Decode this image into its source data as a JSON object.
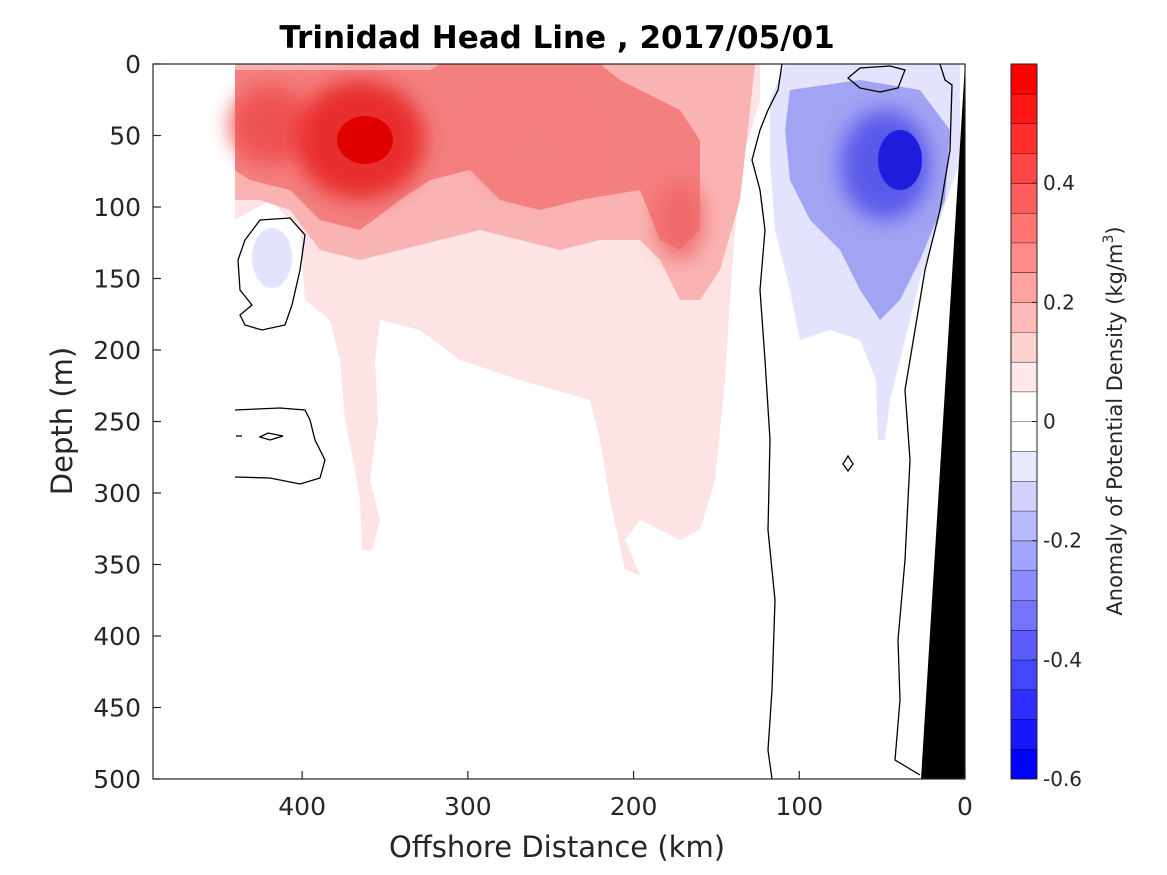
{
  "chart_data": {
    "type": "heatmap",
    "title": "Trinidad Head Line , 2017/05/01",
    "xlabel": "Offshore Distance (km)",
    "ylabel": "Depth (m)",
    "colorbar_label": "Anomaly of Potential Density (kg/m",
    "colorbar_label_superscript": "3",
    "colorbar_label_suffix": ")",
    "xlim": [
      490,
      0
    ],
    "ylim": [
      0,
      500
    ],
    "x_reversed": true,
    "y_reversed": true,
    "x_ticks": [
      400,
      300,
      200,
      100,
      0
    ],
    "x_tick_labels": [
      "400",
      "300",
      "200",
      "100",
      "0"
    ],
    "y_ticks": [
      0,
      50,
      100,
      150,
      200,
      250,
      300,
      350,
      400,
      450,
      500
    ],
    "y_tick_labels": [
      "0",
      "50",
      "100",
      "150",
      "200",
      "250",
      "300",
      "350",
      "400",
      "450",
      "500"
    ],
    "colorbar_range": [
      -0.6,
      0.6
    ],
    "colorbar_step": 0.05,
    "colorbar_ticks": [
      0.4,
      0.2,
      0,
      -0.2,
      -0.4,
      -0.6
    ],
    "colorbar_tick_labels": [
      "0.4",
      "0.2",
      "0",
      "-0.2",
      "-0.4",
      "-0.6"
    ],
    "colors": {
      "positive": "#ff0000",
      "negative": "#0000ff",
      "zero": "#ffffff",
      "bathymetry": "#000000",
      "contour": "#000000"
    },
    "features": [
      {
        "name": "surface-positive-max-west",
        "x": 430,
        "y": 60,
        "value": 0.45
      },
      {
        "name": "surface-positive-max",
        "x": 360,
        "y": 60,
        "value": 0.55
      },
      {
        "name": "surface-positive-mid",
        "x": 240,
        "y": 80,
        "value": 0.3
      },
      {
        "name": "subsurface-positive",
        "x": 170,
        "y": 110,
        "value": 0.3
      },
      {
        "name": "weak-negative-west",
        "x": 415,
        "y": 140,
        "value": -0.1
      },
      {
        "name": "coastal-negative-core",
        "x": 40,
        "y": 70,
        "value": -0.5
      }
    ]
  }
}
